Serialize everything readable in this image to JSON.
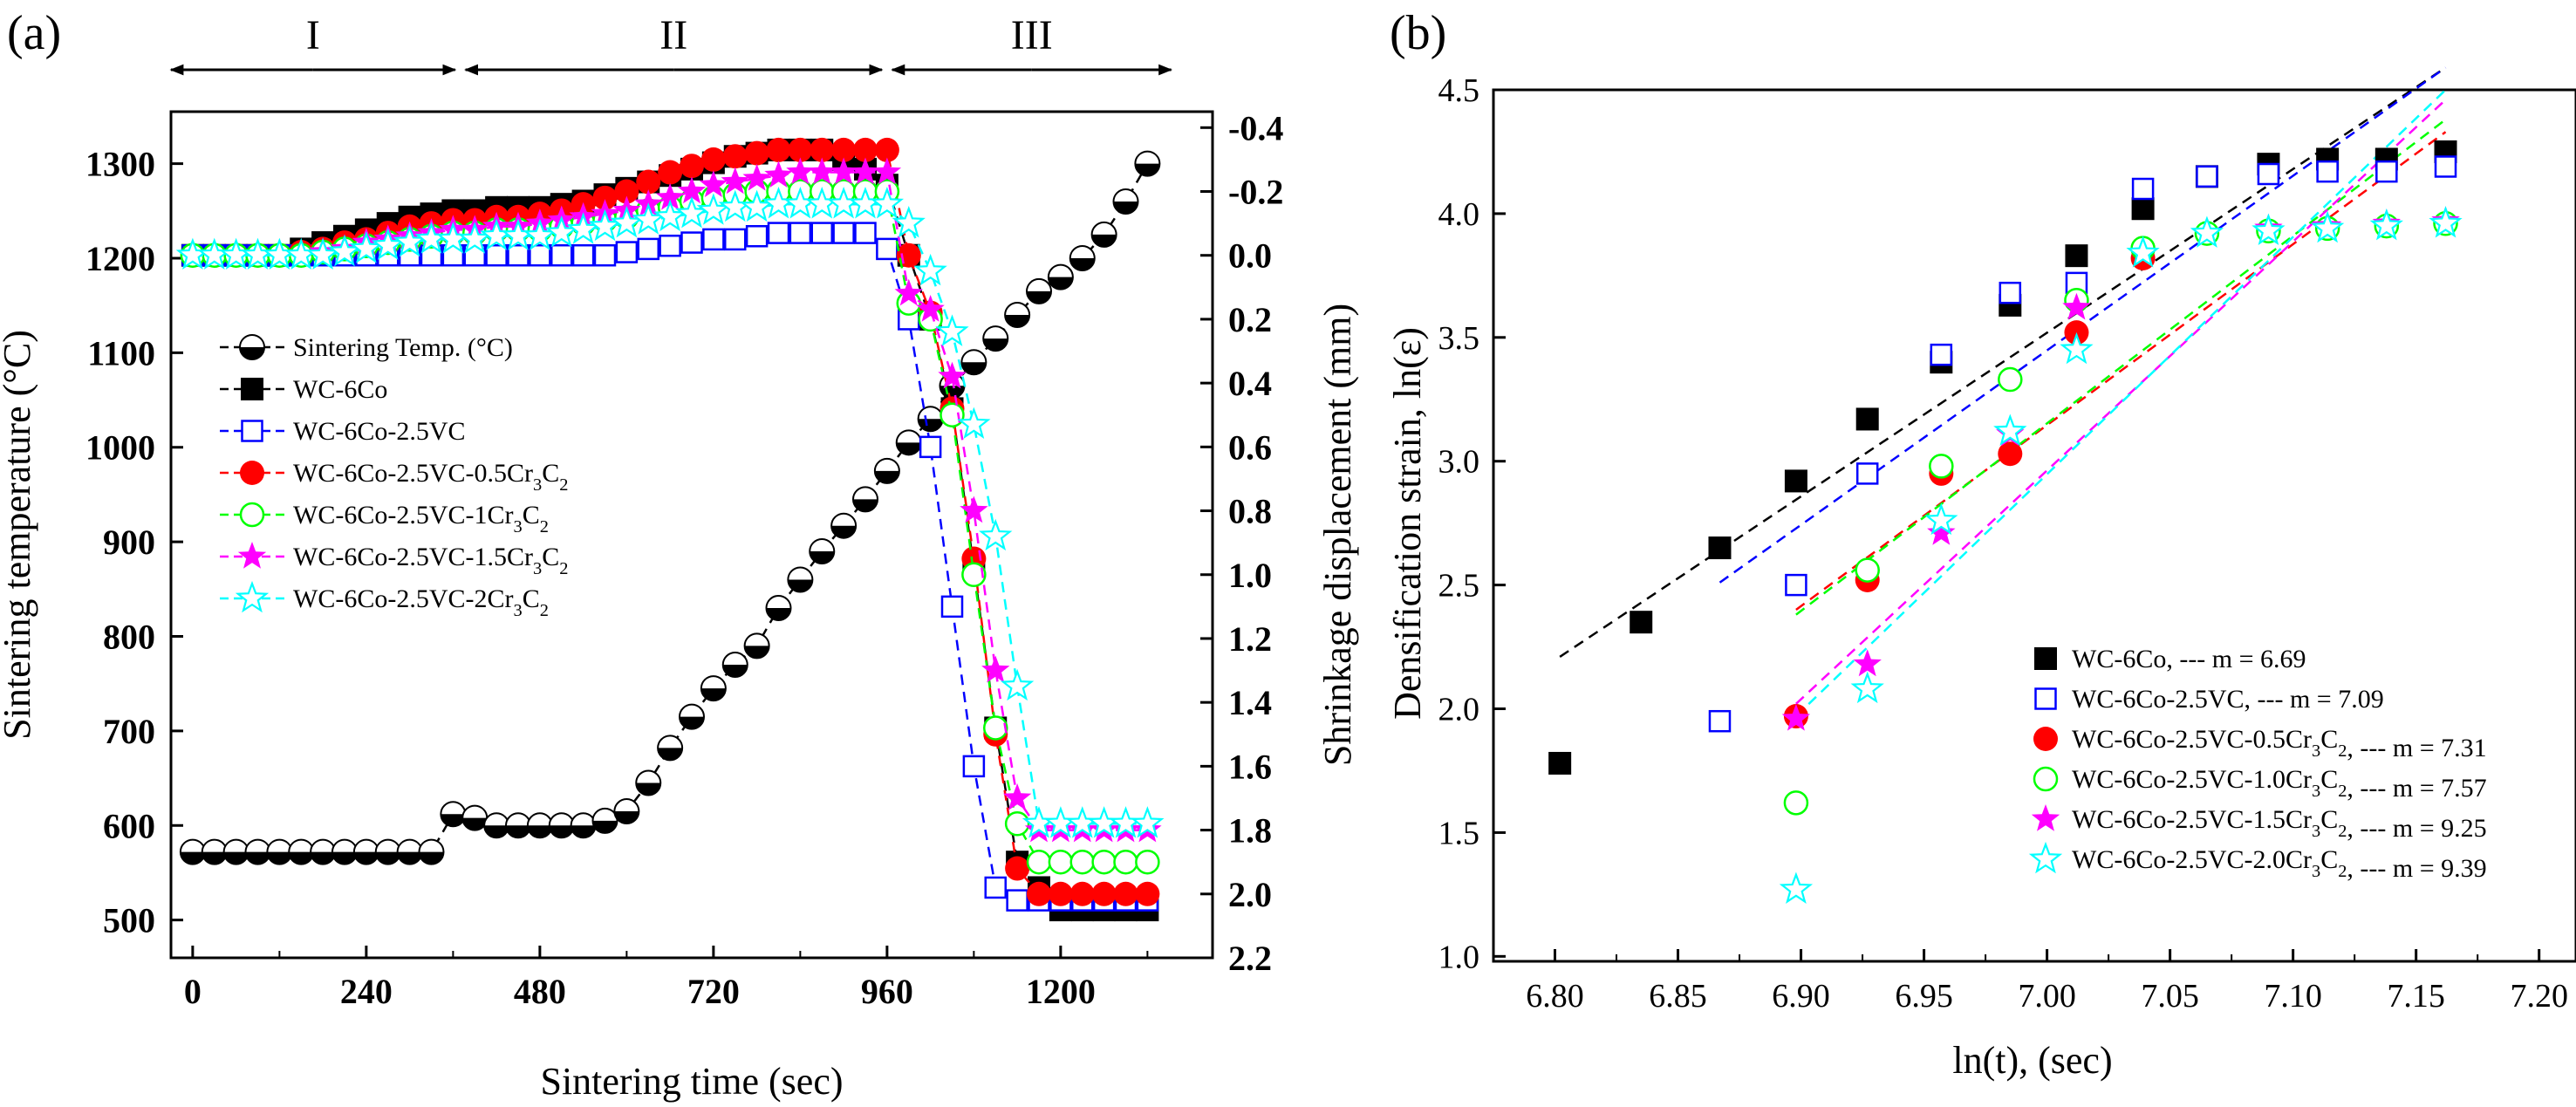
{
  "chart_data": [
    {
      "panel_label": "(a)",
      "type": "scatter",
      "xlabel": "Sintering time (sec)",
      "ylabel_left": "Sintering temperature (°C)",
      "ylabel_right": "Shrinkage displacement (mm)",
      "xlim": [
        -30,
        1410
      ],
      "ylim_left": [
        460,
        1355
      ],
      "ylim_right": [
        2.2,
        -0.45
      ],
      "x_ticks": [
        "0",
        "240",
        "480",
        "720",
        "960",
        "1200"
      ],
      "y_left_ticks": [
        "500",
        "600",
        "700",
        "800",
        "900",
        "1000",
        "1100",
        "1200",
        "1300"
      ],
      "y_right_ticks": [
        "-0.4",
        "-0.2",
        "0.0",
        "0.2",
        "0.4",
        "0.6",
        "0.8",
        "1.0",
        "1.2",
        "1.4",
        "1.6",
        "1.8",
        "2.0",
        "2.2"
      ],
      "stages": [
        {
          "label": "I",
          "x_from": -30,
          "x_to": 370
        },
        {
          "label": "II",
          "x_from": 370,
          "x_to": 960
        },
        {
          "label": "III",
          "x_from": 960,
          "x_to": 1360
        }
      ],
      "legend_position": "center-left",
      "temperature_series": {
        "name": "Sintering Temp. (°C)",
        "x": [
          0,
          30,
          60,
          90,
          120,
          150,
          180,
          210,
          240,
          270,
          300,
          330,
          360,
          390,
          420,
          450,
          480,
          510,
          540,
          570,
          600,
          630,
          660,
          690,
          720,
          750,
          780,
          810,
          840,
          870,
          900,
          930,
          960,
          990,
          1020,
          1050,
          1080,
          1110,
          1140,
          1170,
          1200,
          1230,
          1260,
          1290,
          1320
        ],
        "y": [
          572,
          572,
          572,
          572,
          572,
          572,
          572,
          572,
          572,
          572,
          572,
          572,
          612,
          608,
          600,
          600,
          600,
          600,
          600,
          605,
          615,
          645,
          682,
          715,
          745,
          770,
          790,
          830,
          860,
          890,
          917,
          945,
          975,
          1005,
          1030,
          1065,
          1090,
          1115,
          1140,
          1165,
          1180,
          1200,
          1225,
          1260,
          1300
        ]
      },
      "displacement_series": [
        {
          "name": "WC-6Co",
          "color": "#000000",
          "marker": "filled-square",
          "x": [
            0,
            30,
            60,
            90,
            120,
            150,
            180,
            210,
            240,
            270,
            300,
            330,
            360,
            390,
            420,
            450,
            480,
            510,
            540,
            570,
            600,
            630,
            660,
            690,
            720,
            750,
            780,
            810,
            840,
            870,
            900,
            930,
            960,
            990,
            1020,
            1050,
            1080,
            1110,
            1140,
            1170,
            1200,
            1230,
            1260,
            1290,
            1320
          ],
          "y": [
            0.0,
            0.0,
            0.0,
            0.0,
            0.0,
            -0.02,
            -0.04,
            -0.06,
            -0.08,
            -0.1,
            -0.12,
            -0.13,
            -0.14,
            -0.14,
            -0.15,
            -0.15,
            -0.15,
            -0.16,
            -0.17,
            -0.19,
            -0.21,
            -0.23,
            -0.25,
            -0.27,
            -0.29,
            -0.31,
            -0.32,
            -0.33,
            -0.33,
            -0.33,
            -0.3,
            -0.27,
            -0.22,
            0.0,
            0.2,
            0.48,
            0.98,
            1.48,
            1.9,
            1.98,
            2.05,
            2.05,
            2.05,
            2.05,
            2.05
          ]
        },
        {
          "name": "WC-6Co-2.5VC",
          "color": "#0000ff",
          "marker": "open-square",
          "x": [
            0,
            30,
            60,
            90,
            120,
            150,
            180,
            210,
            240,
            270,
            300,
            330,
            360,
            390,
            420,
            450,
            480,
            510,
            540,
            570,
            600,
            630,
            660,
            690,
            720,
            750,
            780,
            810,
            840,
            870,
            900,
            930,
            960,
            990,
            1020,
            1050,
            1080,
            1110,
            1140,
            1170,
            1200,
            1230,
            1260,
            1290,
            1320
          ],
          "y": [
            0.0,
            0.0,
            0.0,
            0.0,
            0.0,
            0.0,
            0.0,
            0.0,
            0.0,
            0.0,
            0.0,
            0.0,
            0.0,
            0.0,
            0.0,
            0.0,
            0.0,
            0.0,
            0.0,
            0.0,
            -0.01,
            -0.02,
            -0.03,
            -0.04,
            -0.05,
            -0.05,
            -0.06,
            -0.07,
            -0.07,
            -0.07,
            -0.07,
            -0.07,
            -0.02,
            0.2,
            0.6,
            1.1,
            1.6,
            1.98,
            2.02,
            2.02,
            2.02,
            2.02,
            2.02,
            2.02,
            2.02
          ]
        },
        {
          "name": "WC-6Co-2.5VC-0.5Cr3C2",
          "color": "#ff0000",
          "marker": "filled-circle",
          "x": [
            0,
            30,
            60,
            90,
            120,
            150,
            180,
            210,
            240,
            270,
            300,
            330,
            360,
            390,
            420,
            450,
            480,
            510,
            540,
            570,
            600,
            630,
            660,
            690,
            720,
            750,
            780,
            810,
            840,
            870,
            900,
            930,
            960,
            990,
            1020,
            1050,
            1080,
            1110,
            1140,
            1170,
            1200,
            1230,
            1260,
            1290,
            1320
          ],
          "y": [
            0.0,
            0.0,
            0.0,
            0.0,
            0.0,
            -0.01,
            -0.02,
            -0.04,
            -0.05,
            -0.07,
            -0.09,
            -0.1,
            -0.11,
            -0.11,
            -0.12,
            -0.12,
            -0.13,
            -0.14,
            -0.16,
            -0.18,
            -0.2,
            -0.23,
            -0.26,
            -0.28,
            -0.3,
            -0.31,
            -0.32,
            -0.33,
            -0.33,
            -0.33,
            -0.33,
            -0.33,
            -0.33,
            0.0,
            0.18,
            0.48,
            0.95,
            1.5,
            1.92,
            2.0,
            2.0,
            2.0,
            2.0,
            2.0,
            2.0
          ]
        },
        {
          "name": "WC-6Co-2.5VC-1Cr3C2",
          "color": "#00ff00",
          "marker": "open-circle",
          "x": [
            0,
            30,
            60,
            90,
            120,
            150,
            180,
            210,
            240,
            270,
            300,
            330,
            360,
            390,
            420,
            450,
            480,
            510,
            540,
            570,
            600,
            630,
            660,
            690,
            720,
            750,
            780,
            810,
            840,
            870,
            900,
            930,
            960,
            990,
            1020,
            1050,
            1080,
            1110,
            1140,
            1170,
            1200,
            1230,
            1260,
            1290,
            1320
          ],
          "y": [
            0.0,
            0.0,
            0.0,
            0.0,
            0.0,
            0.0,
            -0.01,
            -0.02,
            -0.03,
            -0.04,
            -0.05,
            -0.06,
            -0.07,
            -0.07,
            -0.08,
            -0.08,
            -0.08,
            -0.09,
            -0.1,
            -0.11,
            -0.12,
            -0.14,
            -0.15,
            -0.17,
            -0.18,
            -0.19,
            -0.2,
            -0.2,
            -0.2,
            -0.2,
            -0.2,
            -0.2,
            -0.2,
            0.15,
            0.2,
            0.5,
            1.0,
            1.48,
            1.78,
            1.9,
            1.9,
            1.9,
            1.9,
            1.9,
            1.9
          ]
        },
        {
          "name": "WC-6Co-2.5VC-1.5Cr3C2",
          "color": "#ff00ff",
          "marker": "filled-star",
          "x": [
            0,
            30,
            60,
            90,
            120,
            150,
            180,
            210,
            240,
            270,
            300,
            330,
            360,
            390,
            420,
            450,
            480,
            510,
            540,
            570,
            600,
            630,
            660,
            690,
            720,
            750,
            780,
            810,
            840,
            870,
            900,
            930,
            960,
            990,
            1020,
            1050,
            1080,
            1110,
            1140,
            1170,
            1200,
            1230,
            1260,
            1290,
            1320
          ],
          "y": [
            0.0,
            0.0,
            0.0,
            0.0,
            0.0,
            0.0,
            -0.01,
            -0.02,
            -0.04,
            -0.05,
            -0.06,
            -0.07,
            -0.08,
            -0.08,
            -0.09,
            -0.09,
            -0.1,
            -0.11,
            -0.12,
            -0.13,
            -0.14,
            -0.16,
            -0.18,
            -0.2,
            -0.22,
            -0.23,
            -0.24,
            -0.25,
            -0.26,
            -0.26,
            -0.26,
            -0.26,
            -0.26,
            0.12,
            0.17,
            0.38,
            0.8,
            1.3,
            1.7,
            1.8,
            1.8,
            1.8,
            1.8,
            1.8,
            1.8
          ]
        },
        {
          "name": "WC-6Co-2.5VC-2Cr3C2",
          "color": "#00ffff",
          "marker": "open-star",
          "x": [
            0,
            30,
            60,
            90,
            120,
            150,
            180,
            210,
            240,
            270,
            300,
            330,
            360,
            390,
            420,
            450,
            480,
            510,
            540,
            570,
            600,
            630,
            660,
            690,
            720,
            750,
            780,
            810,
            840,
            870,
            900,
            930,
            960,
            990,
            1020,
            1050,
            1080,
            1110,
            1140,
            1170,
            1200,
            1230,
            1260,
            1290,
            1320
          ],
          "y": [
            0.0,
            0.0,
            0.0,
            0.0,
            0.0,
            0.0,
            0.0,
            -0.01,
            -0.02,
            -0.03,
            -0.04,
            -0.05,
            -0.05,
            -0.05,
            -0.06,
            -0.06,
            -0.06,
            -0.07,
            -0.08,
            -0.09,
            -0.1,
            -0.11,
            -0.12,
            -0.13,
            -0.14,
            -0.15,
            -0.15,
            -0.16,
            -0.16,
            -0.16,
            -0.16,
            -0.16,
            -0.16,
            -0.1,
            0.05,
            0.24,
            0.53,
            0.88,
            1.35,
            1.78,
            1.78,
            1.78,
            1.78,
            1.78,
            1.78
          ]
        }
      ]
    },
    {
      "panel_label": "(b)",
      "type": "scatter",
      "xlabel": "ln(t), (sec)",
      "ylabel": "Densification strain, ln(ε)",
      "xlim": [
        6.775,
        7.215
      ],
      "ylim": [
        0.98,
        4.5
      ],
      "x_ticks": [
        "6.80",
        "6.85",
        "6.90",
        "6.95",
        "7.00",
        "7.05",
        "7.10",
        "7.15",
        "7.20"
      ],
      "y_ticks": [
        "1.0",
        "1.5",
        "2.0",
        "2.5",
        "3.0",
        "3.5",
        "4.0",
        "4.5"
      ],
      "legend_position": "bottom-right",
      "series": [
        {
          "name": "WC-6Co, --- m = 6.69",
          "color": "#000000",
          "marker": "filled-square",
          "x": [
            6.802,
            6.835,
            6.867,
            6.898,
            6.927,
            6.957,
            6.985,
            7.012,
            7.039,
            7.065,
            7.09,
            7.114,
            7.138,
            7.162
          ],
          "y": [
            1.78,
            2.35,
            2.65,
            2.92,
            3.17,
            3.4,
            3.63,
            3.83,
            4.02,
            4.15,
            4.2,
            4.22,
            4.22,
            4.25
          ],
          "fit": {
            "x": [
              6.802,
              7.162
            ],
            "y": [
              2.21,
              4.59
            ]
          }
        },
        {
          "name": "WC-6Co-2.5VC, --- m = 7.09",
          "color": "#0000ff",
          "marker": "open-square",
          "x": [
            6.867,
            6.898,
            6.927,
            6.957,
            6.985,
            7.012,
            7.039,
            7.065,
            7.09,
            7.114,
            7.138,
            7.162
          ],
          "y": [
            1.95,
            2.5,
            2.95,
            3.43,
            3.68,
            3.72,
            4.1,
            4.15,
            4.16,
            4.17,
            4.17,
            4.19
          ],
          "fit": {
            "x": [
              6.867,
              7.162
            ],
            "y": [
              2.51,
              4.59
            ]
          }
        },
        {
          "name": "WC-6Co-2.5VC-0.5Cr3C2, --- m = 7.31",
          "color": "#ff0000",
          "marker": "filled-circle",
          "x": [
            6.898,
            6.927,
            6.957,
            6.985,
            7.012,
            7.039
          ],
          "y": [
            1.97,
            2.52,
            2.95,
            3.03,
            3.52,
            3.82
          ],
          "fit": {
            "x": [
              6.898,
              7.162
            ],
            "y": [
              2.4,
              4.33
            ]
          }
        },
        {
          "name": "WC-6Co-2.5VC-1.0Cr3C2, --- m = 7.57",
          "color": "#00ff00",
          "marker": "open-circle",
          "x": [
            6.898,
            6.927,
            6.957,
            6.985,
            7.012,
            7.039,
            7.065,
            7.09,
            7.114,
            7.138,
            7.162
          ],
          "y": [
            1.62,
            2.56,
            2.98,
            3.33,
            3.65,
            3.86,
            3.92,
            3.93,
            3.94,
            3.95,
            3.96
          ],
          "fit": {
            "x": [
              6.898,
              7.162
            ],
            "y": [
              2.38,
              4.38
            ]
          }
        },
        {
          "name": "WC-6Co-2.5VC-1.5Cr3C2, --- m = 9.25",
          "color": "#ff00ff",
          "marker": "filled-star",
          "x": [
            6.898,
            6.927,
            6.957,
            6.985,
            7.012,
            7.039,
            7.065,
            7.09,
            7.114,
            7.138,
            7.162
          ],
          "y": [
            1.96,
            2.18,
            2.71,
            3.11,
            3.62,
            3.84,
            3.92,
            3.94,
            3.95,
            3.96,
            3.97
          ],
          "fit": {
            "x": [
              6.898,
              7.162
            ],
            "y": [
              2.02,
              4.46
            ]
          }
        },
        {
          "name": "WC-6Co-2.5VC-2.0Cr3C2, --- m = 9.39",
          "color": "#00ffff",
          "marker": "open-star",
          "x": [
            6.898,
            6.927,
            6.957,
            6.985,
            7.012,
            7.039,
            7.065,
            7.09,
            7.114,
            7.138,
            7.162
          ],
          "y": [
            1.27,
            2.08,
            2.76,
            3.12,
            3.45,
            3.84,
            3.92,
            3.93,
            3.94,
            3.95,
            3.96
          ],
          "fit": {
            "x": [
              6.898,
              7.162
            ],
            "y": [
              1.97,
              4.5
            ]
          }
        }
      ]
    }
  ]
}
